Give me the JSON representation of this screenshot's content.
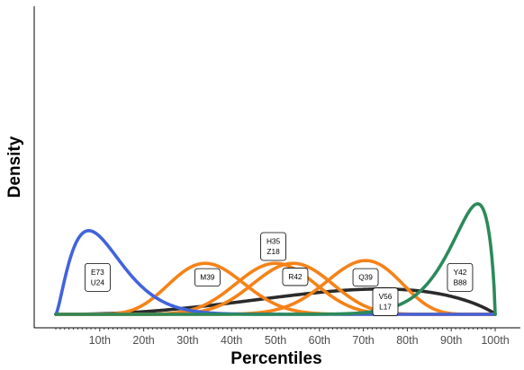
{
  "chart_data": {
    "type": "line",
    "xlabel": "Percentiles",
    "ylabel": "Density",
    "x_ticks": [
      "10th",
      "20th",
      "30th",
      "40th",
      "50th",
      "60th",
      "70th",
      "80th",
      "90th",
      "100th"
    ],
    "xlim": [
      0,
      100
    ],
    "grid": false,
    "colors": {
      "blue": "#4263dc",
      "orange": "#f58218",
      "green": "#2b8a5a",
      "black": "#2b2b2b"
    },
    "series": [
      {
        "color": "blue",
        "mode": 7.5,
        "spread": 6.0,
        "peak": 0.274
      },
      {
        "color": "orange",
        "mode": 34,
        "spread": 8.5,
        "peak": 0.167
      },
      {
        "color": "orange",
        "mode": 50,
        "spread": 9.0,
        "peak": 0.167
      },
      {
        "color": "orange",
        "mode": 54,
        "spread": 9.0,
        "peak": 0.167
      },
      {
        "color": "orange",
        "mode": 70.5,
        "spread": 8.5,
        "peak": 0.176
      },
      {
        "color": "black",
        "mode": 74,
        "spread": 24,
        "peak": 0.083
      },
      {
        "color": "green",
        "mode": 96,
        "spread": 4.5,
        "peak": 0.362
      }
    ],
    "annotations": [
      {
        "lines": [
          "E73",
          "U24"
        ],
        "x": 9.5,
        "y": 0.121
      },
      {
        "lines": [
          "M39"
        ],
        "x": 34.5,
        "y": 0.121
      },
      {
        "lines": [
          "H35",
          "Z18"
        ],
        "x": 49.5,
        "y": 0.222
      },
      {
        "lines": [
          "R42"
        ],
        "x": 54.5,
        "y": 0.123
      },
      {
        "lines": [
          "Q39"
        ],
        "x": 70.5,
        "y": 0.121
      },
      {
        "lines": [
          "V56",
          "L17"
        ],
        "x": 75,
        "y": 0.041
      },
      {
        "lines": [
          "Y42",
          "B88"
        ],
        "x": 92,
        "y": 0.121
      }
    ]
  }
}
